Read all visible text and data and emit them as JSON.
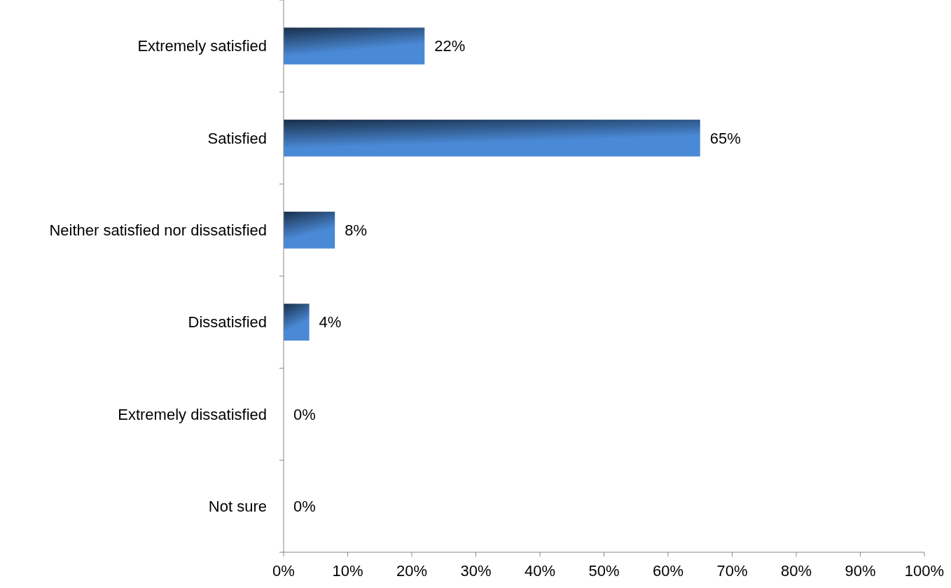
{
  "chart_data": {
    "type": "bar",
    "orientation": "horizontal",
    "categories": [
      "Extremely satisfied",
      "Satisfied",
      "Neither satisfied nor dissatisfied",
      "Dissatisfied",
      "Extremely dissatisfied",
      "Not sure"
    ],
    "values": [
      22,
      65,
      8,
      4,
      0,
      0
    ],
    "value_labels": [
      "22%",
      "65%",
      "8%",
      "4%",
      "0%",
      "0%"
    ],
    "color": "#4a89d6",
    "grid": false,
    "xlim": [
      0,
      100
    ],
    "xticks": [
      {
        "value": 0,
        "label": "0%"
      },
      {
        "value": 10,
        "label": "10%"
      },
      {
        "value": 20,
        "label": "20%"
      },
      {
        "value": 30,
        "label": "30%"
      },
      {
        "value": 40,
        "label": "40%"
      },
      {
        "value": 50,
        "label": "50%"
      },
      {
        "value": 60,
        "label": "60%"
      },
      {
        "value": 70,
        "label": "70%"
      },
      {
        "value": 80,
        "label": "80%"
      },
      {
        "value": 90,
        "label": "90%"
      },
      {
        "value": 100,
        "label": "100%"
      }
    ]
  }
}
